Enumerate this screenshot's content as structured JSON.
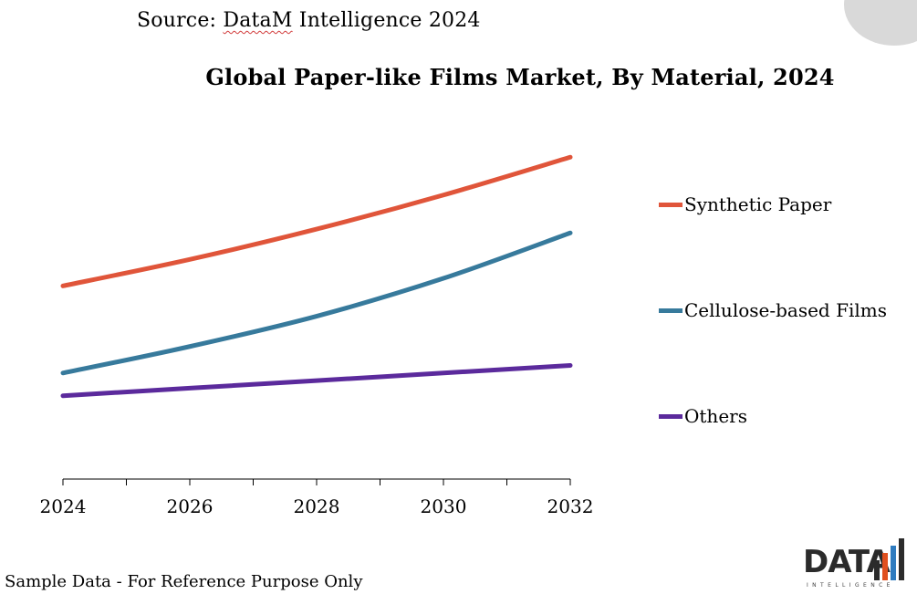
{
  "source": {
    "prefix": "Source: ",
    "brand": "DataM",
    "suffix": " Intelligence 2024"
  },
  "title": "Global Paper-like Films Market, By Material, 2024",
  "footnote": "Sample Data - For Reference Purpose Only",
  "logo": {
    "word": "DATA",
    "sub": "INTELLIGENCE",
    "colors": [
      "#2b2b2b",
      "#e0501f",
      "#2e7bbf",
      "#2b2b2b"
    ]
  },
  "chart_data": {
    "type": "line",
    "x": [
      2024,
      2026,
      2028,
      2030,
      2032
    ],
    "x_ticks": [
      "2024",
      "2026",
      "2028",
      "2030",
      "2032"
    ],
    "xlim": [
      2024,
      2032
    ],
    "ylim": [
      0,
      100
    ],
    "y_axis_visible": false,
    "grid": false,
    "legend_position": "right",
    "series": [
      {
        "name": "Synthetic Paper",
        "color": "#e0553a",
        "values": [
          51,
          58,
          66,
          75,
          85
        ]
      },
      {
        "name": "Cellulose-based Films",
        "color": "#377a9c",
        "values": [
          28,
          35,
          43,
          53,
          65
        ]
      },
      {
        "name": "Others",
        "color": "#5b2a9c",
        "values": [
          22,
          24,
          26,
          28,
          30
        ]
      }
    ]
  }
}
